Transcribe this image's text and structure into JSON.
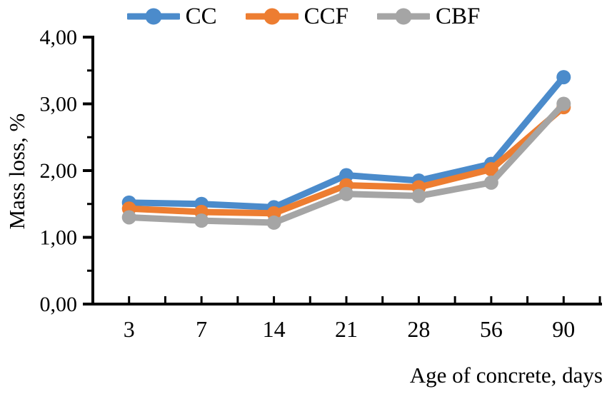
{
  "chart_data": {
    "type": "line",
    "title": "",
    "xlabel": "Age of concrete, days",
    "ylabel": "Mass loss, %",
    "x": [
      "3",
      "7",
      "14",
      "21",
      "28",
      "56",
      "90"
    ],
    "ylim": [
      0,
      4
    ],
    "y_major_step": 1.0,
    "y_minor_step": 0.5,
    "y_tick_labels": [
      "0,00",
      "1,00",
      "2,00",
      "3,00",
      "4,00"
    ],
    "grid": false,
    "legend_position": "top",
    "axis_color": "#000000",
    "series": [
      {
        "name": "CC",
        "color": "#4B8BCB",
        "values": [
          1.52,
          1.5,
          1.45,
          1.93,
          1.85,
          2.1,
          3.4
        ]
      },
      {
        "name": "CCF",
        "color": "#ED7D31",
        "values": [
          1.43,
          1.38,
          1.36,
          1.78,
          1.75,
          2.02,
          2.95
        ]
      },
      {
        "name": "CBF",
        "color": "#A5A5A5",
        "values": [
          1.3,
          1.25,
          1.22,
          1.65,
          1.62,
          1.82,
          3.0
        ]
      }
    ]
  }
}
